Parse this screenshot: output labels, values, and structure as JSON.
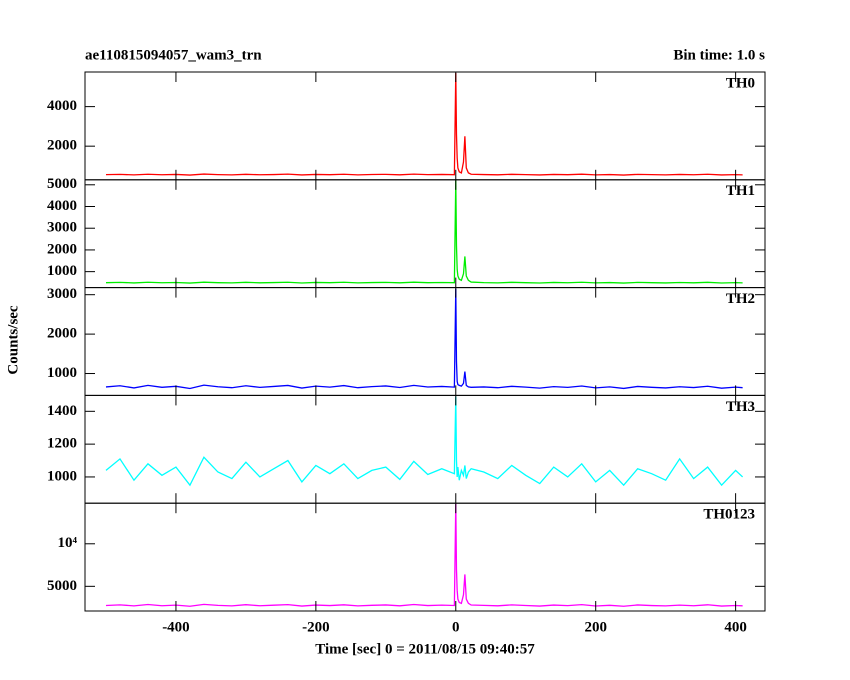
{
  "chart_data": {
    "type": "line",
    "title": "ae110815094057_wam3_trn",
    "subtitle": "Bin time: 1.0 s",
    "xlabel": "Time [sec] 0 = 2011/08/15 09:40:57",
    "ylabel": "Counts/sec",
    "xlim": [
      -530,
      442
    ],
    "xticks": [
      -400,
      -200,
      0,
      200,
      400
    ],
    "x": [
      -500,
      -480,
      -460,
      -440,
      -420,
      -400,
      -380,
      -360,
      -340,
      -320,
      -300,
      -280,
      -260,
      -240,
      -220,
      -200,
      -180,
      -160,
      -140,
      -120,
      -100,
      -80,
      -60,
      -40,
      -20,
      -2,
      0,
      1,
      2,
      3,
      5,
      8,
      11,
      13,
      15,
      18,
      22,
      40,
      60,
      80,
      100,
      120,
      140,
      160,
      180,
      200,
      220,
      240,
      260,
      280,
      300,
      320,
      340,
      360,
      380,
      400,
      410
    ],
    "panels": [
      {
        "name": "TH0",
        "color": "#ff0000",
        "ylim": [
          300,
          5750
        ],
        "yticks": [
          2000,
          4000
        ],
        "values": [
          560,
          575,
          548,
          582,
          555,
          570,
          540,
          590,
          562,
          548,
          578,
          555,
          566,
          585,
          545,
          572,
          558,
          580,
          550,
          568,
          575,
          552,
          586,
          560,
          570,
          560,
          5700,
          2600,
          1400,
          900,
          700,
          650,
          1200,
          2500,
          900,
          650,
          580,
          565,
          552,
          578,
          560,
          545,
          572,
          558,
          583,
          550,
          566,
          540,
          575,
          560,
          548,
          570,
          555,
          580,
          545,
          562,
          550
        ]
      },
      {
        "name": "TH1",
        "color": "#00ee00",
        "ylim": [
          265,
          5230
        ],
        "yticks": [
          1000,
          2000,
          3000,
          4000,
          5000
        ],
        "values": [
          490,
          505,
          480,
          512,
          488,
          500,
          475,
          515,
          492,
          482,
          508,
          486,
          498,
          512,
          478,
          502,
          490,
          510,
          484,
          498,
          505,
          486,
          514,
          492,
          500,
          492,
          5200,
          2200,
          1100,
          800,
          650,
          600,
          900,
          1700,
          800,
          600,
          520,
          495,
          484,
          508,
          492,
          478,
          502,
          488,
          512,
          482,
          496,
          474,
          505,
          490,
          480,
          500,
          486,
          508,
          478,
          494,
          482
        ]
      },
      {
        "name": "TH2",
        "color": "#0000ff",
        "ylim": [
          445,
          3180
        ],
        "yticks": [
          1000,
          2000,
          3000
        ],
        "values": [
          660,
          690,
          635,
          700,
          650,
          675,
          620,
          705,
          665,
          640,
          690,
          648,
          672,
          698,
          632,
          680,
          655,
          694,
          640,
          668,
          685,
          645,
          700,
          658,
          672,
          655,
          3150,
          1300,
          800,
          720,
          700,
          680,
          750,
          1050,
          700,
          660,
          650,
          660,
          640,
          676,
          655,
          630,
          668,
          648,
          684,
          636,
          662,
          622,
          672,
          650,
          634,
          664,
          644,
          678,
          628,
          654,
          640
        ]
      },
      {
        "name": "TH3",
        "color": "#00ffff",
        "ylim": [
          840,
          1497
        ],
        "yticks": [
          1000,
          1200,
          1400
        ],
        "values": [
          1040,
          1110,
          980,
          1080,
          1010,
          1060,
          950,
          1120,
          1030,
          990,
          1090,
          1000,
          1050,
          1100,
          970,
          1070,
          1020,
          1080,
          990,
          1040,
          1060,
          985,
          1095,
          1015,
          1050,
          1020,
          1490,
          1100,
          1000,
          1060,
          980,
          1040,
          1010,
          1070,
          990,
          1030,
          1050,
          1030,
          990,
          1070,
          1010,
          960,
          1060,
          1000,
          1080,
          970,
          1040,
          950,
          1050,
          1020,
          980,
          1110,
          990,
          1060,
          950,
          1040,
          1000
        ]
      },
      {
        "name": "TH0123",
        "color": "#ff00ff",
        "ylim": [
          2100,
          14770
        ],
        "yticks": [
          5000,
          {
            "value": 10000,
            "label": "10⁴"
          }
        ],
        "values": [
          2750,
          2820,
          2700,
          2860,
          2720,
          2790,
          2660,
          2880,
          2760,
          2700,
          2840,
          2720,
          2780,
          2850,
          2680,
          2800,
          2740,
          2830,
          2700,
          2770,
          2810,
          2710,
          2860,
          2740,
          2790,
          2750,
          14700,
          7000,
          4500,
          3500,
          3100,
          3000,
          4000,
          6400,
          3500,
          3000,
          2800,
          2760,
          2710,
          2820,
          2750,
          2680,
          2800,
          2730,
          2850,
          2690,
          2770,
          2660,
          2810,
          2740,
          2700,
          2790,
          2720,
          2830,
          2680,
          2750,
          2710
        ]
      }
    ]
  }
}
